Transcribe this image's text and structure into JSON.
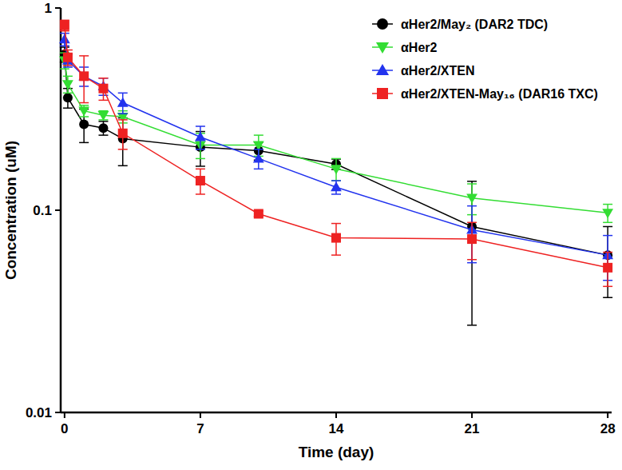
{
  "chart_data": {
    "type": "line",
    "x_label": "Time (day)",
    "y_label": "Concentration (uM)",
    "log": "y",
    "grid": false,
    "legend": "top-right",
    "xlim": [
      -0.2,
      28.2
    ],
    "xticks": [
      0,
      7,
      14,
      21,
      28
    ],
    "ylim": [
      0.01,
      1
    ],
    "yticks": [
      0.01,
      0.1,
      1
    ],
    "x": [
      0,
      0.167,
      1,
      2,
      3,
      7,
      10,
      14,
      21,
      28
    ],
    "series": [
      {
        "name": "αHer2/May₂ (DAR2 TDC)",
        "color": "#000000",
        "marker": "circle",
        "values": [
          0.59,
          0.36,
          0.266,
          0.255,
          0.226,
          0.205,
          0.197,
          0.169,
          0.083,
          0.06
        ],
        "errors": [
          0.05,
          0.04,
          0.05,
          0.02,
          0.06,
          0.04,
          0.02,
          0.01,
          0.056,
          0.023
        ]
      },
      {
        "name": "αHer2",
        "color": "#33dd33",
        "marker": "triangle-down",
        "values": [
          0.55,
          0.42,
          0.31,
          0.295,
          0.29,
          0.21,
          0.21,
          0.16,
          0.115,
          0.097
        ],
        "errors": [
          0.05,
          0.04,
          0.02,
          0.015,
          0.02,
          0.03,
          0.025,
          0.02,
          0.02,
          0.01
        ]
      },
      {
        "name": "αHer2/XTEN",
        "color": "#2233ee",
        "marker": "triangle-up",
        "values": [
          0.7,
          0.55,
          0.46,
          0.41,
          0.34,
          0.23,
          0.18,
          0.13,
          0.08,
          0.06
        ],
        "errors": [
          0.05,
          0.04,
          0.05,
          0.04,
          0.04,
          0.03,
          0.02,
          0.01,
          0.025,
          0.015
        ]
      },
      {
        "name": "αHer2/XTEN-May₁₆ (DAR16 TXC)",
        "color": "#ee2222",
        "marker": "square",
        "values": [
          0.82,
          0.57,
          0.46,
          0.4,
          0.24,
          0.14,
          0.096,
          0.073,
          0.072,
          0.052
        ],
        "errors": [
          0.05,
          0.05,
          0.12,
          0.05,
          0.04,
          0.02,
          0.003,
          0.013,
          0.015,
          0.01
        ]
      }
    ]
  }
}
